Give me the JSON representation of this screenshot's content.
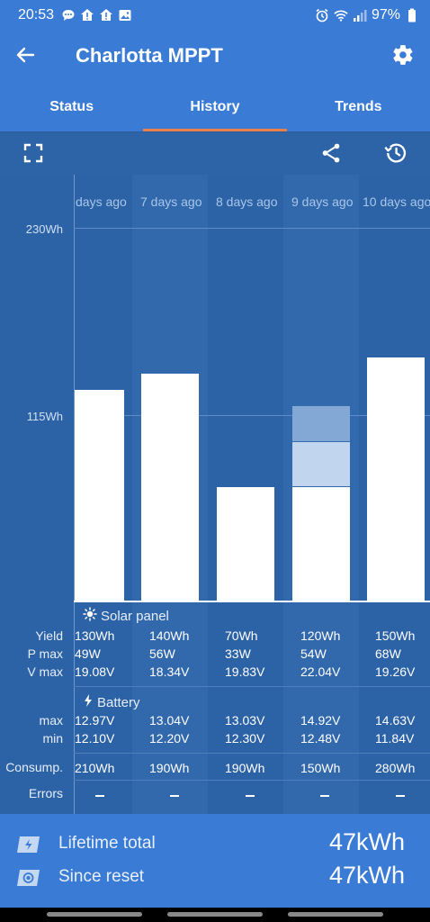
{
  "status_bar": {
    "time": "20:53",
    "battery": "97%",
    "icons_left": [
      "message-icon",
      "home-alert-icon",
      "home-alert-icon",
      "gallery-icon"
    ],
    "icons_right": [
      "alarm-icon",
      "wifi-icon",
      "signal-icon",
      "battery-icon"
    ]
  },
  "app_bar": {
    "title": "Charlotta MPPT",
    "back_icon": "arrow-left-icon",
    "settings_icon": "gear-icon"
  },
  "tabs": [
    {
      "label": "Status",
      "active": false
    },
    {
      "label": "History",
      "active": true
    },
    {
      "label": "Trends",
      "active": false
    }
  ],
  "toolbar": {
    "icons": [
      "fullscreen-icon",
      "share-icon",
      "history-icon"
    ]
  },
  "colors": {
    "primary": "#3a7bd5",
    "chart_bg": "#2c62a6",
    "tab_indicator": "#e8804a",
    "bar": "#ffffff",
    "bar_light": "#c1d5ee",
    "bar_mid": "#84a8d5"
  },
  "chart_data": {
    "type": "bar",
    "categories": [
      "days ago",
      "7 days ago",
      "8 days ago",
      "9 days ago",
      "10 days ago"
    ],
    "y_tick_labels": [
      "230Wh",
      "115Wh"
    ],
    "ylim": [
      0,
      230
    ],
    "series": [
      {
        "values": [
          130,
          140,
          70,
          70,
          150
        ]
      },
      {
        "values": [
          0,
          0,
          0,
          28,
          0
        ]
      },
      {
        "values": [
          0,
          0,
          0,
          22,
          0
        ]
      }
    ]
  },
  "table": {
    "solar_header": "Solar panel",
    "battery_header": "Battery",
    "row_labels": {
      "yield": "Yield",
      "pmax": "P max",
      "vmax": "V max",
      "bmax": "max",
      "bmin": "min",
      "consump": "Consump.",
      "errors": "Errors"
    },
    "columns": [
      {
        "yield": "130Wh",
        "pmax": "49W",
        "vmax": "19.08V",
        "bmax": "12.97V",
        "bmin": "12.10V",
        "consump": "210Wh",
        "errors": "-"
      },
      {
        "yield": "140Wh",
        "pmax": "56W",
        "vmax": "18.34V",
        "bmax": "13.04V",
        "bmin": "12.20V",
        "consump": "190Wh",
        "errors": "-"
      },
      {
        "yield": "70Wh",
        "pmax": "33W",
        "vmax": "19.83V",
        "bmax": "13.03V",
        "bmin": "12.30V",
        "consump": "190Wh",
        "errors": "-"
      },
      {
        "yield": "120Wh",
        "pmax": "54W",
        "vmax": "22.04V",
        "bmax": "14.92V",
        "bmin": "12.48V",
        "consump": "150Wh",
        "errors": "-"
      },
      {
        "yield": "150Wh",
        "pmax": "68W",
        "vmax": "19.26V",
        "bmax": "14.63V",
        "bmin": "11.84V",
        "consump": "280Wh",
        "errors": "-"
      }
    ]
  },
  "footer": {
    "lifetime_label": "Lifetime total",
    "lifetime_value": "47kWh",
    "reset_label": "Since reset",
    "reset_value": "47kWh"
  }
}
